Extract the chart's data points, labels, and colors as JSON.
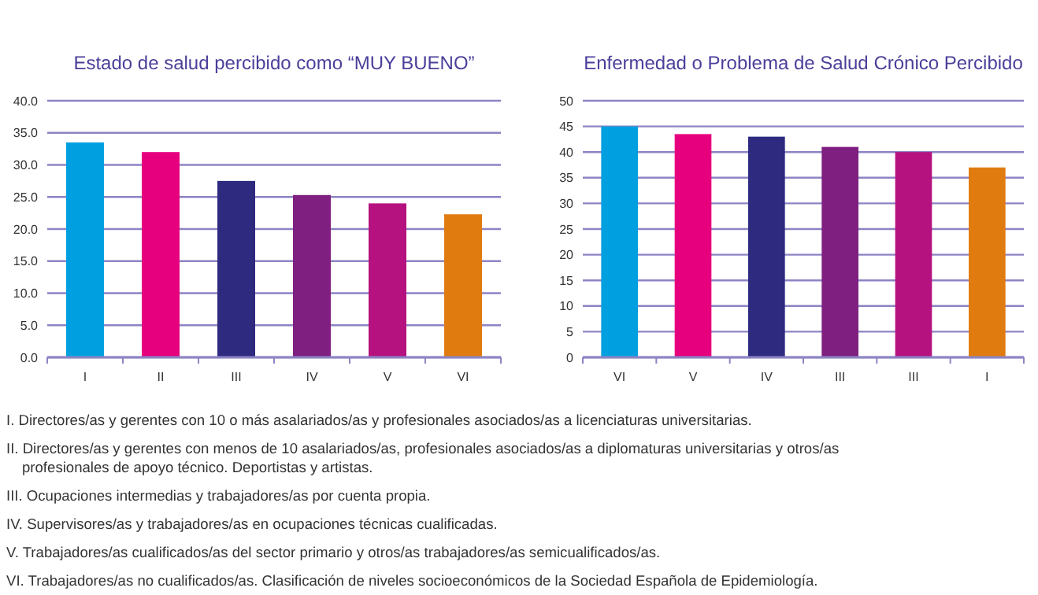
{
  "chart_data": [
    {
      "type": "bar",
      "title": "Estado de salud percibido como “MUY BUENO”",
      "categories": [
        "I",
        "II",
        "III",
        "IV",
        "V",
        "VI"
      ],
      "values": [
        33.5,
        32,
        27.5,
        25.3,
        24,
        22.3
      ],
      "colors": [
        "#00a0e0",
        "#e6007e",
        "#2e2a7f",
        "#7f1f7f",
        "#b5127f",
        "#e07b10"
      ],
      "ylim": [
        0,
        40
      ],
      "yticks": [
        {
          "value": 0,
          "label": "0.0"
        },
        {
          "value": 5,
          "label": "5.0"
        },
        {
          "value": 10,
          "label": "10.0"
        },
        {
          "value": 15,
          "label": "15.0"
        },
        {
          "value": 20,
          "label": "20.0"
        },
        {
          "value": 25,
          "label": "25.0"
        },
        {
          "value": 30,
          "label": "30.0"
        },
        {
          "value": 35,
          "label": "35.0"
        },
        {
          "value": 40,
          "label": "40.0"
        }
      ],
      "grid": "y",
      "annotations": [
        "I. Directores/as y gerentes con 10 o más asalariados/as y profesionales asociados/as a licenciaturas universitarias.",
        "II. Directores/as y gerentes con menos de 10 asalariados/as, profesionales asociados/as a diplomaturas universitarias y otros/as profesionales de apoyo técnico. Deportistas y artistas.",
        "III. Ocupaciones intermedias y trabajadores/as por cuenta propia.",
        "IV. Supervisores/as y trabajadores/as en ocupaciones técnicas cualificadas.",
        "V. Trabajadores/as cualificados/as del sector primario y otros/as trabajadores/as semicualificados/as.",
        "VI. Trabajadores/as no cualificados/as. Clasificación de niveles socioeconómicos de la Sociedad Española de Epidemiología."
      ]
    },
    {
      "type": "bar",
      "title": "Enfermedad o Problema de Salud Crónico Percibido",
      "categories": [
        "VI",
        "V",
        "IV",
        "III",
        "III",
        "I"
      ],
      "values": [
        45,
        43.5,
        43,
        41,
        40,
        37
      ],
      "colors": [
        "#00a0e0",
        "#e6007e",
        "#2e2a7f",
        "#7f1f7f",
        "#b5127f",
        "#e07b10"
      ],
      "ylim": [
        0,
        50
      ],
      "yticks": [
        0,
        5,
        10,
        15,
        20,
        25,
        30,
        35,
        40,
        45,
        50
      ],
      "grid": "y"
    }
  ]
}
